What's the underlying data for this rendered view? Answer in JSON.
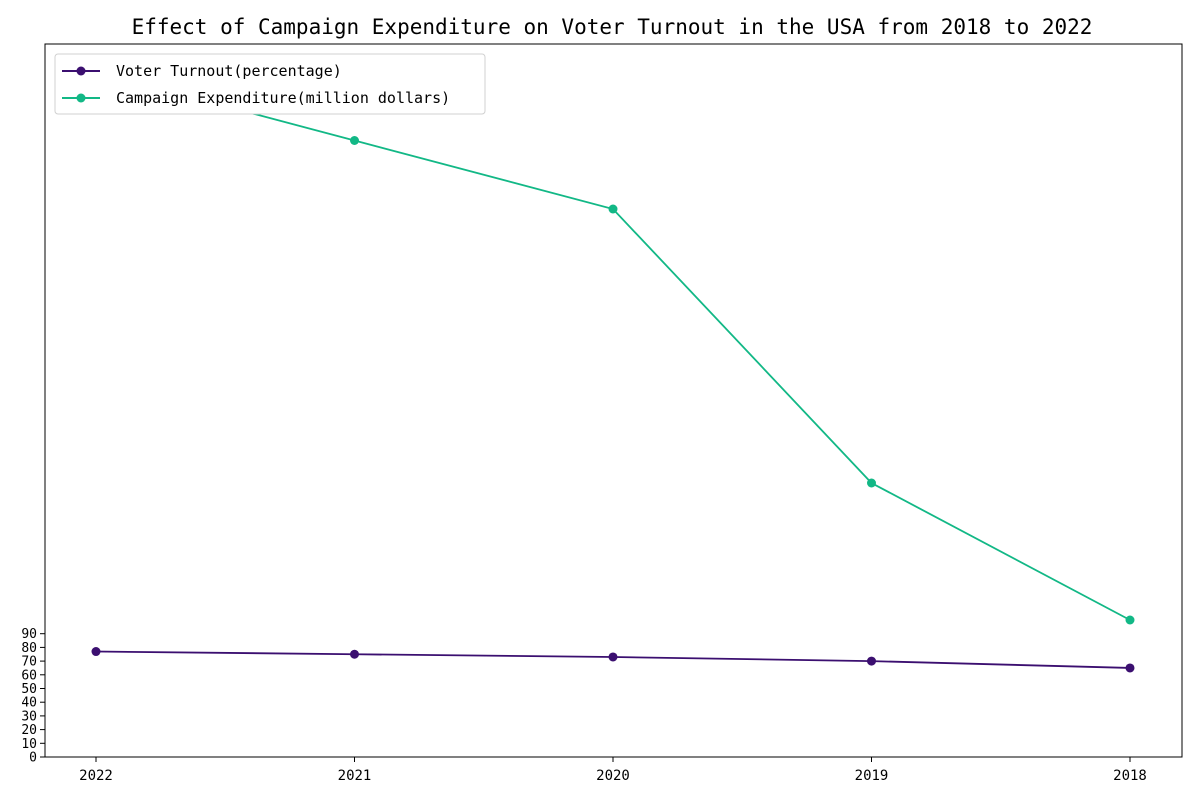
{
  "chart_data": {
    "type": "line",
    "title": "Effect of Campaign Expenditure on Voter Turnout in the USA from 2018 to 2022",
    "categories": [
      "2022",
      "2021",
      "2020",
      "2019",
      "2018"
    ],
    "series": [
      {
        "name": "Voter Turnout(percentage)",
        "values": [
          77,
          75,
          73,
          70,
          65
        ],
        "color": "#3b0f70"
      },
      {
        "name": "Campaign Expenditure(million dollars)",
        "values": [
          500,
          450,
          400,
          200,
          100
        ],
        "color": "#12b886"
      }
    ],
    "yticks": [
      0,
      10,
      20,
      30,
      40,
      50,
      60,
      70,
      80,
      90
    ],
    "ylim": [
      0,
      500
    ],
    "legend_position": "upper-left",
    "grid": false
  }
}
